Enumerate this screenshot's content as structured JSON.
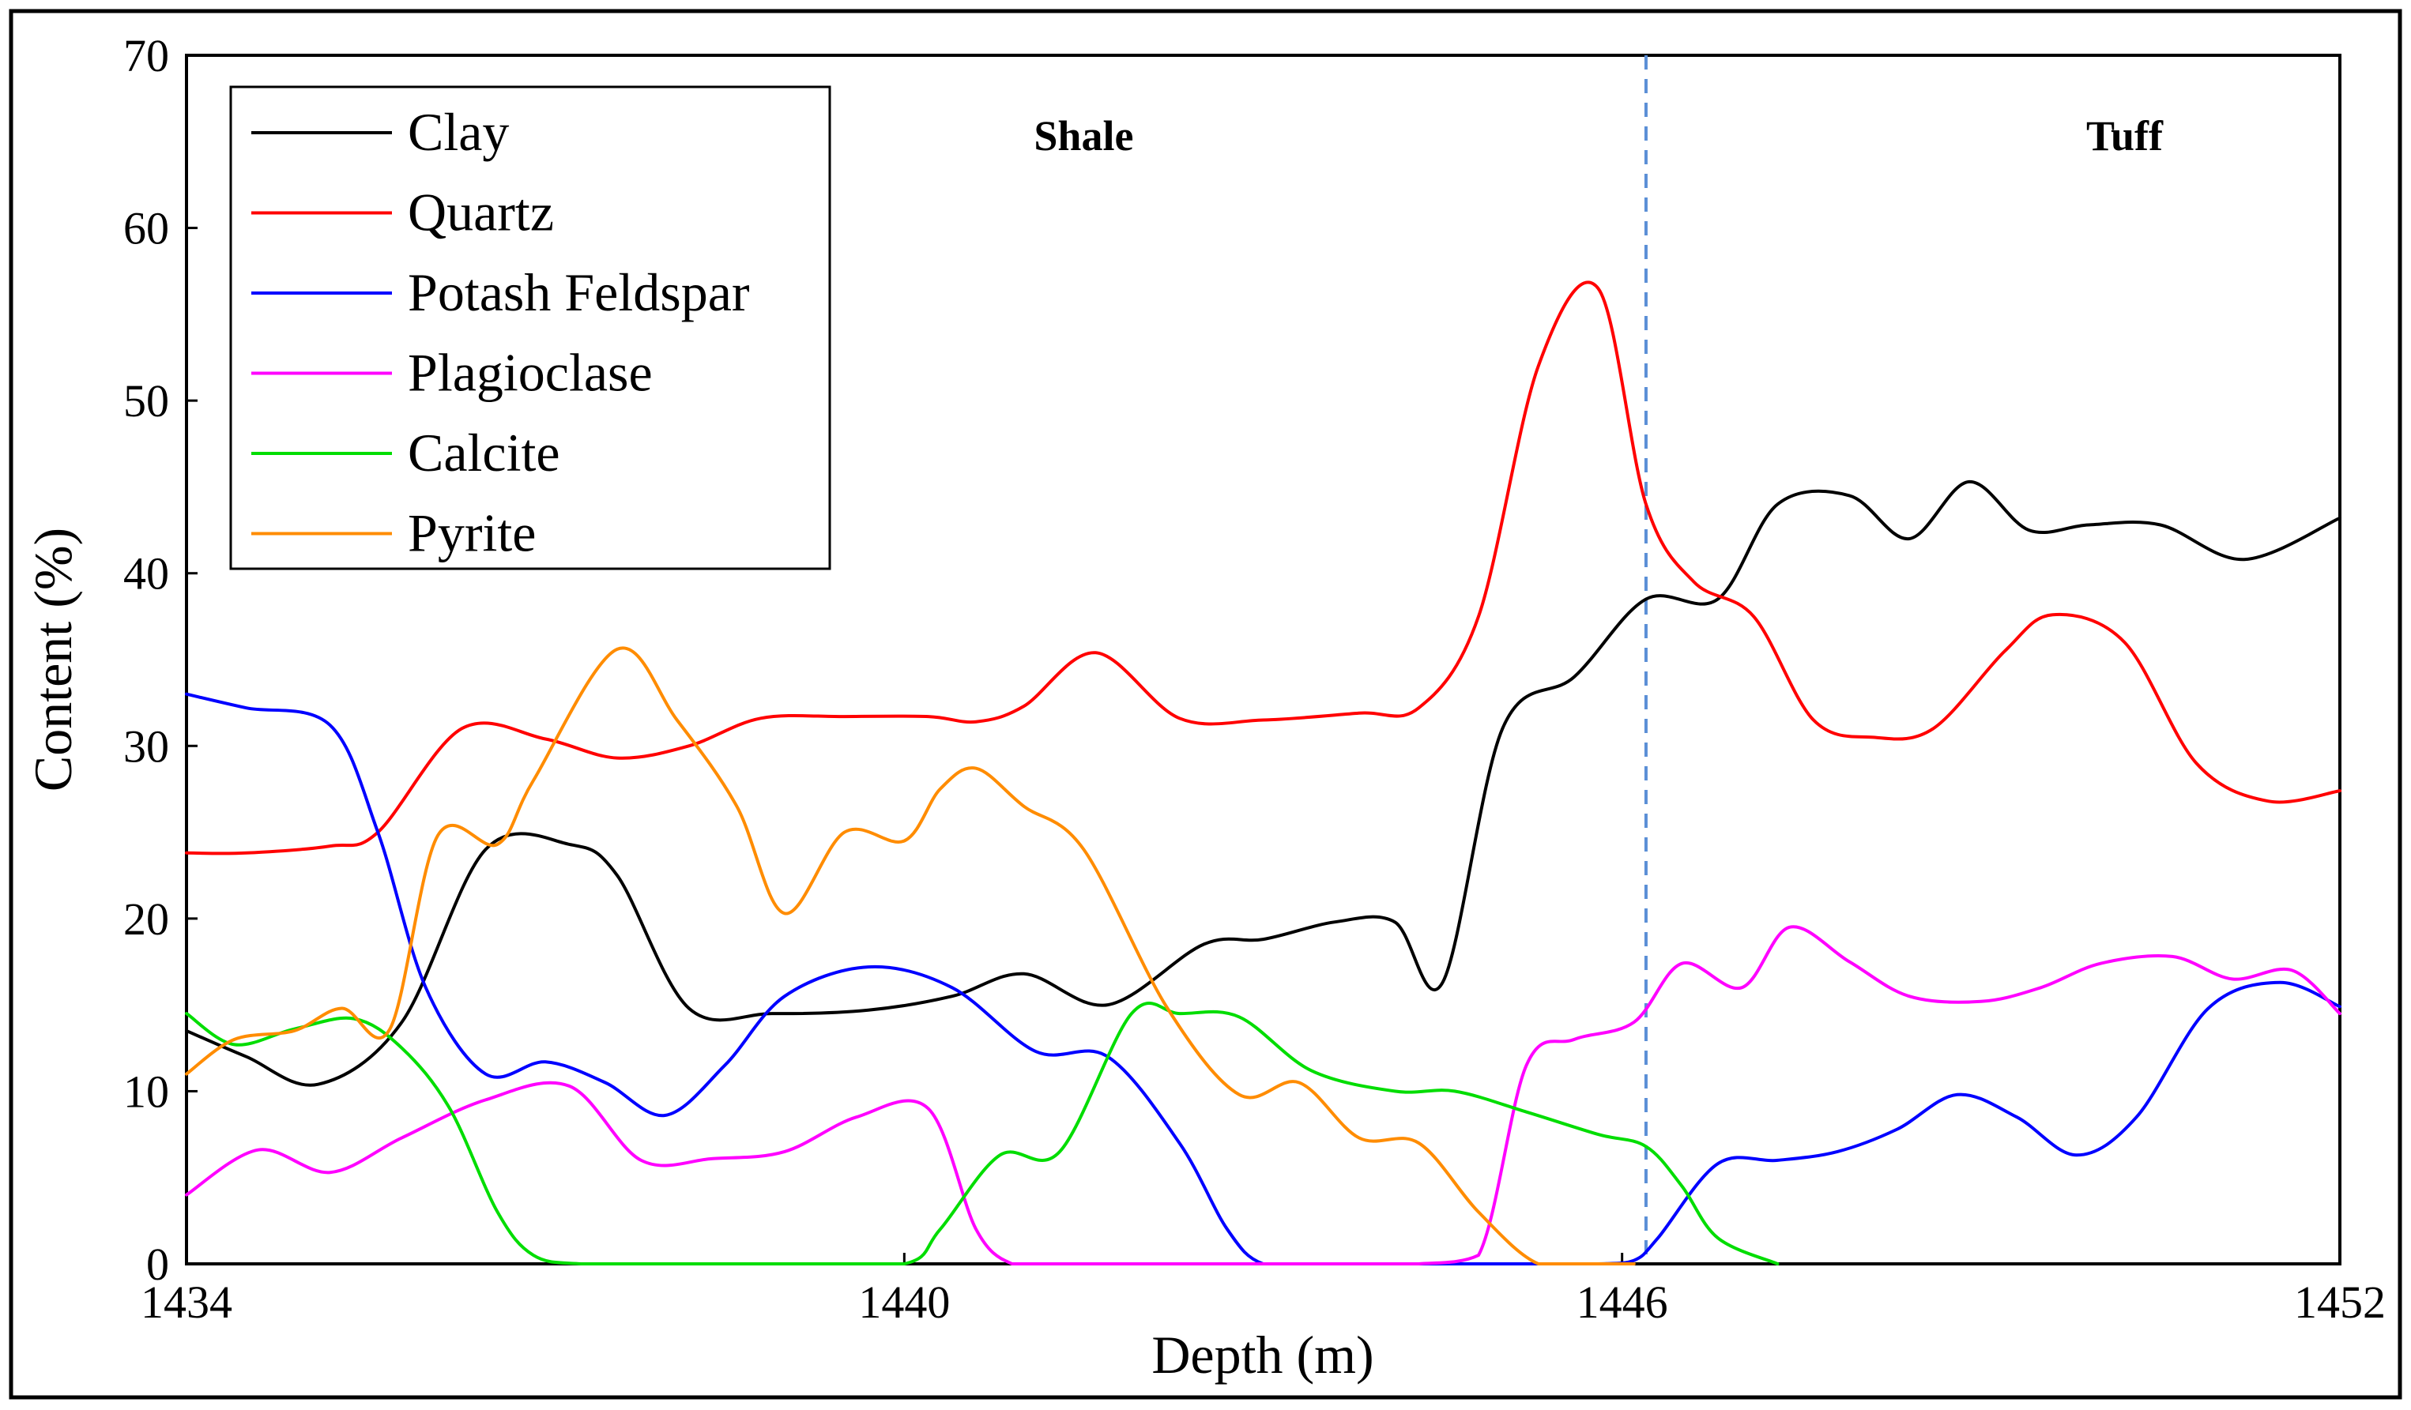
{
  "chart_data": {
    "type": "line",
    "title": "",
    "xlabel": "Depth (m)",
    "ylabel": "Content (%)",
    "xlim": [
      1434,
      1452
    ],
    "ylim": [
      0,
      70
    ],
    "x_ticks": [
      "1434",
      "1440",
      "1446",
      "1452"
    ],
    "y_ticks": [
      "0",
      "10",
      "20",
      "30",
      "40",
      "50",
      "60",
      "70"
    ],
    "grid": false,
    "legend_position": "top-left",
    "annotations": [
      {
        "text": "Shale",
        "x": 1441.5,
        "y": 64.5
      },
      {
        "text": "Tuff",
        "x": 1450.2,
        "y": 64.5
      }
    ],
    "boundary": {
      "x": 1446.2,
      "style": "dashed",
      "color": "#5b8fd6"
    },
    "series": [
      {
        "name": "Clay",
        "color": "#000000",
        "x": [
          1434,
          1434.5,
          1435.1,
          1435.8,
          1436.5,
          1437.2,
          1437.6,
          1438.2,
          1438.9,
          1439.7,
          1440.4,
          1441.0,
          1441.7,
          1442.5,
          1443.0,
          1443.6,
          1444.1,
          1444.5,
          1445.0,
          1445.6,
          1446.2,
          1446.8,
          1447.3,
          1447.9,
          1448.4,
          1448.9,
          1449.4,
          1449.9,
          1450.5,
          1451.2,
          1452
        ],
        "y": [
          13.5,
          12,
          10.4,
          14,
          24,
          24.3,
          22.5,
          14.8,
          14.5,
          14.7,
          15.5,
          16.8,
          15,
          18.5,
          18.8,
          19.8,
          19.8,
          16.3,
          31,
          34,
          38.5,
          38.5,
          44,
          44.5,
          42,
          45.3,
          42.5,
          42.8,
          42.8,
          40.8,
          43.2
        ]
      },
      {
        "name": "Quartz",
        "color": "#ff0000",
        "x": [
          1434,
          1434.5,
          1435.2,
          1435.6,
          1436.3,
          1437.0,
          1437.6,
          1438.2,
          1438.8,
          1439.5,
          1440.2,
          1440.6,
          1441.0,
          1441.6,
          1442.3,
          1443.0,
          1443.8,
          1444.3,
          1444.8,
          1445.3,
          1445.8,
          1446.2,
          1446.6,
          1447.1,
          1447.6,
          1448.1,
          1448.6,
          1449.2,
          1449.6,
          1450.2,
          1450.8,
          1451.4,
          1452
        ],
        "y": [
          23.8,
          23.8,
          24.2,
          25,
          31,
          30.4,
          29.3,
          30,
          31.6,
          31.7,
          31.7,
          31.4,
          32.3,
          35.4,
          31.6,
          31.5,
          31.9,
          32.2,
          37.5,
          52,
          56.5,
          44,
          39.5,
          37.5,
          31.5,
          30.5,
          31,
          35.5,
          37.6,
          36,
          29,
          26.8,
          27.4
        ]
      },
      {
        "name": "Potash Feldspar",
        "color": "#0000ff",
        "x": [
          1434,
          1434.5,
          1435.2,
          1435.6,
          1436.0,
          1436.5,
          1437.0,
          1437.5,
          1438.0,
          1438.5,
          1439.0,
          1439.7,
          1440.4,
          1441.1,
          1441.7,
          1442.3,
          1442.7,
          1443.0,
          1443.5,
          1444.3,
          1445.0,
          1445.8,
          1446.1,
          1446.3,
          1446.8,
          1447.3,
          1447.8,
          1448.3,
          1448.8,
          1449.3,
          1449.8,
          1450.3,
          1450.9,
          1451.5,
          1452
        ],
        "y": [
          33,
          32.2,
          31.2,
          25,
          16,
          11,
          11.7,
          10.5,
          8.6,
          11.5,
          15.5,
          17.2,
          16,
          12.3,
          12,
          7,
          2,
          0,
          0,
          0,
          0,
          0,
          0.2,
          1.5,
          5.8,
          6,
          6.5,
          7.8,
          9.8,
          8.5,
          6.3,
          8.5,
          14.8,
          16.3,
          14.9
        ]
      },
      {
        "name": "Plagioclase",
        "color": "#ff00ff",
        "x": [
          1434,
          1434.6,
          1435.2,
          1435.8,
          1436.5,
          1437.2,
          1437.8,
          1438.4,
          1439.0,
          1439.6,
          1440.2,
          1440.6,
          1440.9,
          1441.2,
          1442.0,
          1443.0,
          1443.8,
          1444.3,
          1444.8,
          1445.2,
          1445.6,
          1446.1,
          1446.5,
          1447.0,
          1447.4,
          1447.9,
          1448.4,
          1449.0,
          1449.5,
          1450.0,
          1450.6,
          1451.1,
          1451.6,
          1452
        ],
        "y": [
          4,
          6.6,
          5.3,
          7.3,
          9.5,
          10.3,
          6,
          6.1,
          6.5,
          8.5,
          9,
          2,
          0,
          0,
          0,
          0,
          0,
          0,
          0.5,
          11.5,
          13,
          14,
          17.4,
          16,
          19.5,
          17.5,
          15.5,
          15.2,
          16,
          17.4,
          17.8,
          16.5,
          17,
          14.5
        ]
      },
      {
        "name": "Calcite",
        "color": "#00dd00",
        "x": [
          1434,
          1434.4,
          1434.9,
          1435.4,
          1435.8,
          1436.2,
          1436.6,
          1436.9,
          1437.3,
          1438.0,
          1439.0,
          1440.0,
          1440.3,
          1440.8,
          1441.3,
          1441.9,
          1442.3,
          1442.8,
          1443.4,
          1444.1,
          1444.6,
          1445.2,
          1445.8,
          1446.2,
          1446.5,
          1446.8,
          1447.3
        ],
        "y": [
          14.5,
          12.7,
          13.6,
          14.2,
          12.5,
          9,
          3,
          0.5,
          0,
          0,
          0,
          0,
          2,
          6.3,
          6.5,
          14.5,
          14.5,
          14.3,
          11.2,
          10,
          10,
          8.8,
          7.5,
          6.8,
          4.5,
          1.5,
          0
        ]
      },
      {
        "name": "Pyrite",
        "color": "#ff8c00",
        "x": [
          1434,
          1434.4,
          1434.9,
          1435.3,
          1435.7,
          1436.1,
          1436.6,
          1436.9,
          1437.6,
          1438.1,
          1438.6,
          1439.0,
          1439.5,
          1440.0,
          1440.3,
          1440.6,
          1441.0,
          1441.5,
          1442.2,
          1442.8,
          1443.3,
          1443.8,
          1444.3,
          1444.8,
          1445.3,
          1445.8,
          1446.0,
          1446.1
        ],
        "y": [
          11,
          13,
          13.5,
          14.8,
          13.6,
          24.8,
          24.3,
          28,
          35.6,
          31.5,
          26.5,
          20.3,
          25,
          24.5,
          27.5,
          28.7,
          26.5,
          24,
          14.8,
          9.8,
          10.5,
          7.3,
          7,
          3,
          0,
          0,
          0,
          0
        ]
      }
    ]
  }
}
